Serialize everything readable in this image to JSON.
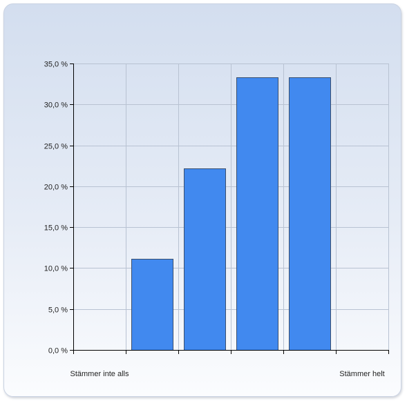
{
  "chart_data": {
    "type": "bar",
    "categories": [
      "Stämmer inte alls",
      "",
      "",
      "",
      "",
      "Stämmer helt"
    ],
    "values": [
      0,
      11.1,
      22.2,
      33.3,
      33.3,
      0
    ],
    "ylim": [
      0,
      35
    ],
    "ytick_values": [
      0,
      5,
      10,
      15,
      20,
      25,
      30,
      35
    ],
    "ytick_labels": [
      "0,0 %",
      "5,0 %",
      "10,0 %",
      "15,0 %",
      "20,0 %",
      "25,0 %",
      "30,0 %",
      "35,0 %"
    ],
    "grid": true,
    "bar_color": "#4189ef",
    "bar_stroke": "#3a4f6e",
    "grid_color": "#b8c2d2"
  }
}
